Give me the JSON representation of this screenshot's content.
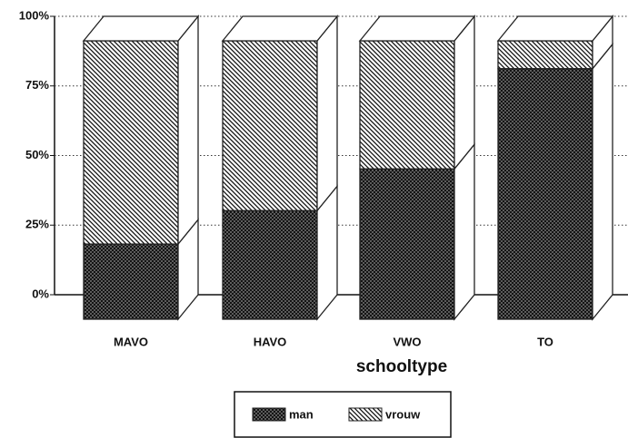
{
  "chart_data": {
    "type": "bar3d-stacked",
    "x_label": "schooltype",
    "categories": [
      "MAVO",
      "HAVO",
      "VWO",
      "TO"
    ],
    "series": [
      {
        "name": "man",
        "color": "#222",
        "pattern": "crosshatch",
        "values": [
          27,
          39,
          54,
          90
        ]
      },
      {
        "name": "vrouw",
        "color": "#222",
        "pattern": "diagonal",
        "values": [
          73,
          61,
          46,
          10
        ]
      }
    ],
    "ylim": [
      0,
      100
    ],
    "yticks": [
      {
        "value": 0,
        "label": "0%"
      },
      {
        "value": 25,
        "label": "25%"
      },
      {
        "value": 50,
        "label": "50%"
      },
      {
        "value": 75,
        "label": "75%"
      },
      {
        "value": 100,
        "label": "100%"
      }
    ],
    "grid": true
  }
}
